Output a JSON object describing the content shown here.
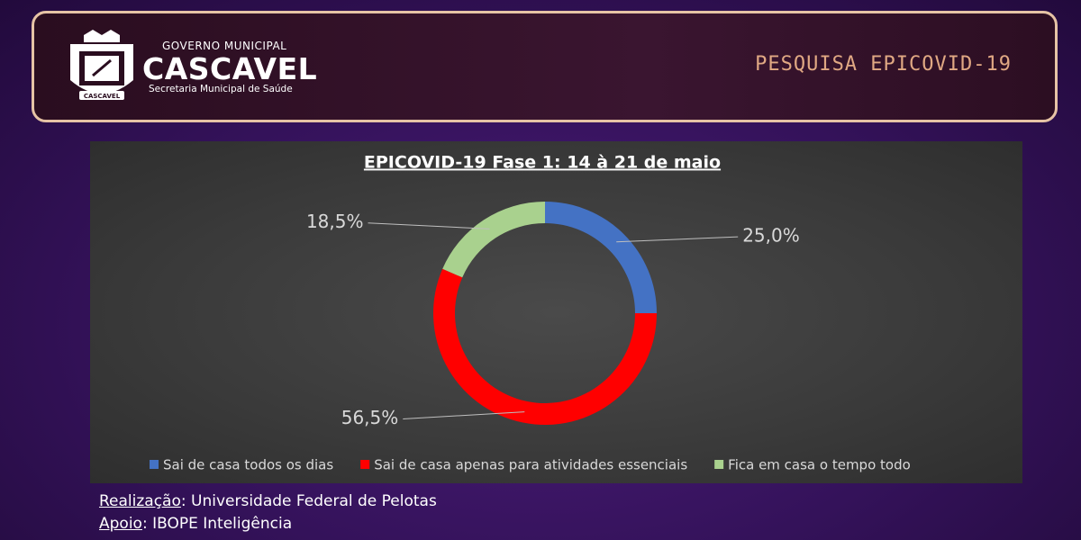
{
  "header": {
    "gov": "GOVERNO MUNICIPAL",
    "city": "CASCAVEL",
    "dept": "Secretaria Municipal de Saúde",
    "badge": "CASCAVEL",
    "title": "PESQUISA EPICOVID-19"
  },
  "chart_data": {
    "type": "donut",
    "title": "EPICOVID-19 Fase 1: 14 à 21 de maio",
    "categories": [
      "Sai de casa todos os dias",
      "Sai de casa apenas para atividades essenciais",
      "Fica em casa o tempo todo"
    ],
    "values": [
      25.0,
      56.5,
      18.5
    ],
    "value_labels": [
      "25,0%",
      "56,5%",
      "18,5%"
    ],
    "colors": [
      "#4472c4",
      "#ff0000",
      "#a9d18e"
    ],
    "legend": "bottom"
  },
  "footer": {
    "lines": [
      {
        "label": "Realização",
        "text": ": Universidade Federal de Pelotas"
      },
      {
        "label": "Apoio",
        "text": ": IBOPE Inteligência"
      }
    ]
  }
}
